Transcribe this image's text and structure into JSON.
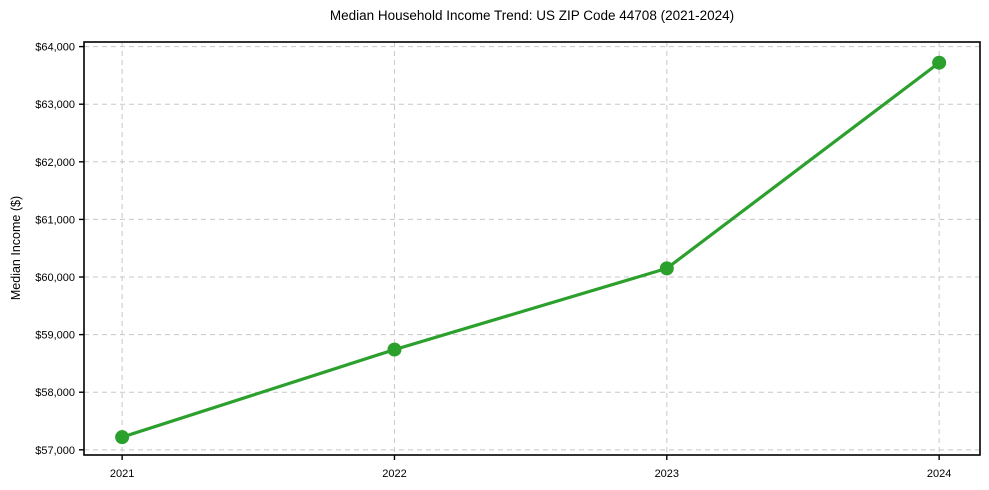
{
  "chart_data": {
    "type": "line",
    "title": "Median Household Income Trend: US ZIP Code 44708 (2021-2024)",
    "xlabel": "",
    "ylabel": "Median Income ($)",
    "categories": [
      "2021",
      "2022",
      "2023",
      "2024"
    ],
    "x": [
      2021,
      2022,
      2023,
      2024
    ],
    "series": [
      {
        "name": "Median Household Income",
        "values": [
          57220,
          58740,
          60150,
          63720
        ]
      }
    ],
    "yticks": [
      57000,
      58000,
      59000,
      60000,
      61000,
      62000,
      63000,
      64000
    ],
    "ytick_labels": [
      "$57,000",
      "$58,000",
      "$59,000",
      "$60,000",
      "$61,000",
      "$62,000",
      "$63,000",
      "$64,000"
    ],
    "xlim": [
      2020.86,
      2024.15
    ],
    "ylim": [
      56910,
      64080
    ],
    "grid": true,
    "grid_style": "dashed",
    "legend": "none",
    "marker": "circle",
    "colors": {
      "line": "#2ca02c",
      "marker": "#2ca02c",
      "grid": "#c8c8c8",
      "spine": "#000000",
      "text": "#000000",
      "background": "#ffffff"
    }
  }
}
